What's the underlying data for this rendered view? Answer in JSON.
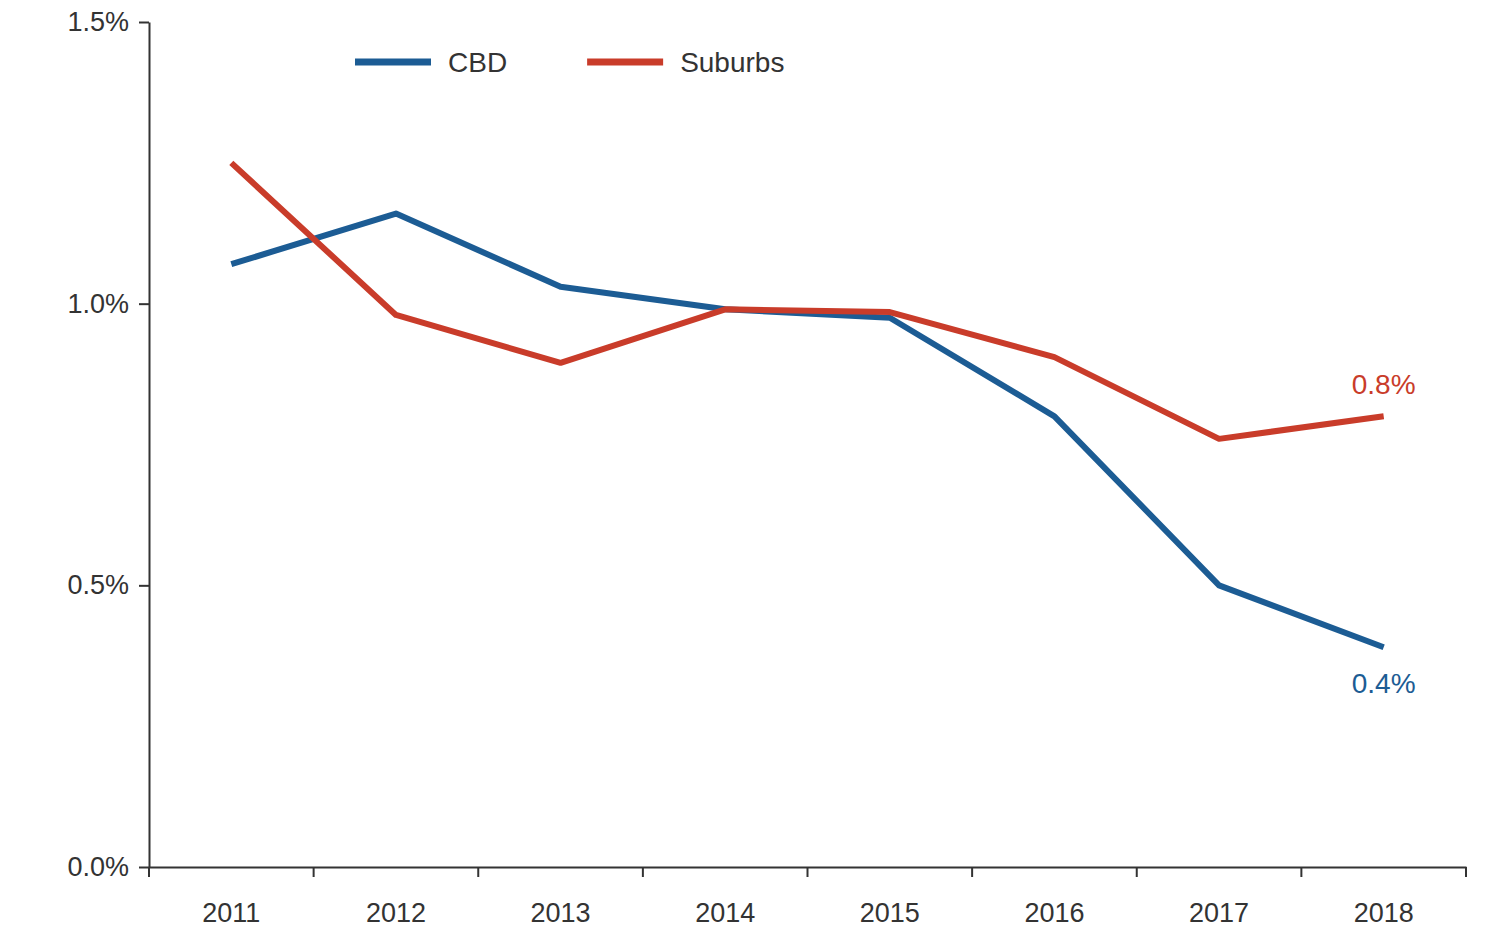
{
  "chart_data": {
    "type": "line",
    "categories": [
      "2011",
      "2012",
      "2013",
      "2014",
      "2015",
      "2016",
      "2017",
      "2018"
    ],
    "series": [
      {
        "name": "CBD",
        "color": "#1c5c94",
        "values": [
          1.07,
          1.16,
          1.03,
          0.99,
          0.975,
          0.8,
          0.5,
          0.39
        ],
        "value_labels": [
          null,
          null,
          null,
          null,
          null,
          null,
          null,
          "0.4%"
        ]
      },
      {
        "name": "Suburbs",
        "color": "#c93c2a",
        "values": [
          1.25,
          0.98,
          0.895,
          0.99,
          0.985,
          0.905,
          0.76,
          0.8
        ],
        "value_labels": [
          null,
          null,
          null,
          null,
          null,
          null,
          null,
          "0.8%"
        ]
      }
    ],
    "ylim": [
      0,
      1.5
    ],
    "yticks": [
      {
        "value": 0,
        "label": "0.0%"
      },
      {
        "value": 0.5,
        "label": "0.5%"
      },
      {
        "value": 1,
        "label": "1.0%"
      },
      {
        "value": 1.5,
        "label": "1.5%"
      }
    ],
    "grid": false,
    "legend": "top",
    "data_labels": true
  }
}
